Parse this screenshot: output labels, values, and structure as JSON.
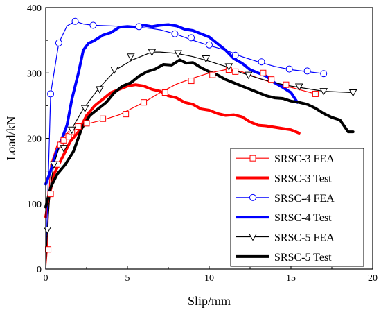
{
  "chart_data": {
    "type": "line",
    "title": "",
    "xlabel": "Slip/mm",
    "ylabel": "Load/kN",
    "xlim": [
      0,
      20
    ],
    "ylim": [
      0,
      400
    ],
    "xticks": [
      "0",
      "5",
      "10",
      "15",
      "20"
    ],
    "yticks": [
      "0",
      "100",
      "200",
      "300",
      "400"
    ],
    "grid": false,
    "legend_position": "bottom-right",
    "series": [
      {
        "name": "SRSC-3 FEA",
        "color": "#ff0000",
        "style": "thin-square",
        "x": [
          0,
          0.1,
          0.2,
          0.3,
          0.5,
          0.7,
          0.9,
          1.1,
          1.3,
          1.5,
          2.0,
          2.5,
          3.5,
          4.5,
          5.2,
          6.0,
          7.0,
          8.0,
          9.0,
          10.0,
          11.0,
          12.0,
          13.0,
          14.0,
          15.0,
          16.5
        ],
        "y": [
          0,
          30,
          115,
          160,
          175,
          190,
          197,
          203,
          208,
          213,
          220,
          222,
          228,
          236,
          245,
          255,
          270,
          283,
          292,
          300,
          305,
          302,
          292,
          284,
          278,
          268
        ],
        "markers_x": [
          0.15,
          0.3,
          0.7,
          0.9,
          1.1,
          1.4,
          1.6,
          2.0,
          2.5,
          3.5,
          4.9,
          6.0,
          7.3,
          8.9,
          10.2,
          11.2,
          11.6,
          13.3,
          13.8,
          14.7,
          16.5
        ],
        "markers_y": [
          30,
          115,
          160,
          190,
          197,
          203,
          210,
          218,
          223,
          230,
          237,
          255,
          270,
          288,
          297,
          305,
          302,
          300,
          290,
          282,
          268
        ]
      },
      {
        "name": "SRSC-3 Test",
        "color": "#ff0000",
        "style": "thick",
        "x": [
          0,
          0.2,
          0.5,
          1.0,
          1.5,
          2.0,
          2.5,
          3.0,
          3.5,
          4.0,
          4.5,
          5.0,
          5.5,
          6.0,
          6.5,
          7.0,
          7.5,
          8.0,
          8.5,
          9.0,
          9.5,
          10.0,
          10.5,
          11.0,
          11.5,
          12.0,
          12.5,
          13.0,
          13.5,
          14.0,
          14.5,
          15.0,
          15.5
        ],
        "y": [
          80,
          110,
          145,
          170,
          195,
          210,
          235,
          250,
          260,
          270,
          275,
          280,
          282,
          280,
          275,
          272,
          265,
          262,
          255,
          252,
          245,
          243,
          238,
          235,
          236,
          233,
          225,
          220,
          219,
          217,
          215,
          213,
          208
        ]
      },
      {
        "name": "SRSC-4 FEA",
        "color": "#0000ff",
        "style": "thin-circle",
        "x": [
          0,
          0.3,
          0.8,
          1.3,
          1.8,
          2.3,
          2.9,
          4.0,
          5.0,
          5.7,
          6.5,
          7.0,
          7.9,
          9.0,
          10.0,
          11.0,
          12.0,
          13.0,
          14.0,
          15.0,
          16.0,
          17.0
        ],
        "y": [
          0,
          268,
          346,
          372,
          379,
          375,
          373,
          372,
          371,
          370,
          368,
          366,
          360,
          350,
          342,
          335,
          325,
          317,
          310,
          305,
          302,
          299
        ],
        "markers_x": [
          0.3,
          0.8,
          1.8,
          2.9,
          5.7,
          7.9,
          8.9,
          10.0,
          11.6,
          13.2,
          14.9,
          16.0,
          17.0
        ],
        "markers_y": [
          268,
          346,
          379,
          373,
          371,
          360,
          354,
          343,
          327,
          317,
          306,
          303,
          299
        ]
      },
      {
        "name": "SRSC-4 Test",
        "color": "#0000ff",
        "style": "thick",
        "x": [
          0,
          0.3,
          0.6,
          1.0,
          1.3,
          1.6,
          2.0,
          2.3,
          2.6,
          3.0,
          3.5,
          4.0,
          4.5,
          5.0,
          5.5,
          6.0,
          6.5,
          7.0,
          7.5,
          8.0,
          8.5,
          9.0,
          9.5,
          10.0,
          10.5,
          11.0,
          11.5,
          12.0,
          12.5,
          13.0,
          13.5,
          14.0,
          14.5,
          15.0,
          15.4
        ],
        "y": [
          130,
          150,
          175,
          200,
          220,
          260,
          300,
          335,
          345,
          350,
          358,
          362,
          370,
          371,
          370,
          373,
          371,
          373,
          374,
          372,
          367,
          365,
          360,
          355,
          345,
          335,
          322,
          315,
          305,
          300,
          295,
          285,
          278,
          270,
          255
        ]
      },
      {
        "name": "SRSC-5 FEA",
        "color": "#000000",
        "style": "thin-triangle",
        "x": [
          0,
          0.1,
          0.3,
          0.5,
          0.8,
          1.2,
          1.6,
          2.3,
          3.2,
          4.3,
          5.3,
          6.5,
          7.0,
          8.0,
          9.0,
          10.0,
          11.0,
          12.0,
          13.0,
          14.0,
          15.0,
          16.0,
          17.0,
          18.8
        ],
        "y": [
          0,
          60,
          130,
          160,
          185,
          200,
          215,
          245,
          275,
          305,
          320,
          332,
          332,
          330,
          325,
          318,
          310,
          300,
          292,
          285,
          280,
          276,
          272,
          270
        ],
        "markers_x": [
          0.1,
          0.5,
          1.1,
          1.6,
          2.4,
          3.3,
          4.2,
          5.2,
          6.5,
          8.1,
          9.8,
          11.2,
          12.4,
          15.5,
          17.0,
          18.8
        ],
        "markers_y": [
          60,
          160,
          185,
          213,
          246,
          275,
          305,
          325,
          332,
          330,
          322,
          310,
          297,
          279,
          272,
          270
        ]
      },
      {
        "name": "SRSC-5 Test",
        "color": "#000000",
        "style": "thick",
        "x": [
          0,
          0.3,
          0.7,
          1.2,
          1.7,
          2.2,
          2.7,
          3.2,
          3.7,
          4.2,
          4.7,
          5.2,
          5.7,
          6.2,
          6.7,
          7.2,
          7.7,
          8.2,
          8.6,
          9.0,
          9.5,
          10.0,
          10.5,
          11.0,
          11.5,
          12.0,
          12.5,
          13.0,
          13.5,
          14.0,
          14.5,
          15.0,
          15.5,
          16.0,
          16.5,
          17.0,
          17.5,
          18.0,
          18.5,
          18.8
        ],
        "y": [
          95,
          125,
          145,
          160,
          180,
          215,
          235,
          245,
          255,
          270,
          280,
          285,
          295,
          302,
          306,
          313,
          312,
          320,
          315,
          316,
          308,
          302,
          297,
          290,
          285,
          280,
          275,
          270,
          265,
          262,
          261,
          257,
          255,
          252,
          246,
          238,
          232,
          228,
          210,
          210
        ]
      }
    ]
  }
}
